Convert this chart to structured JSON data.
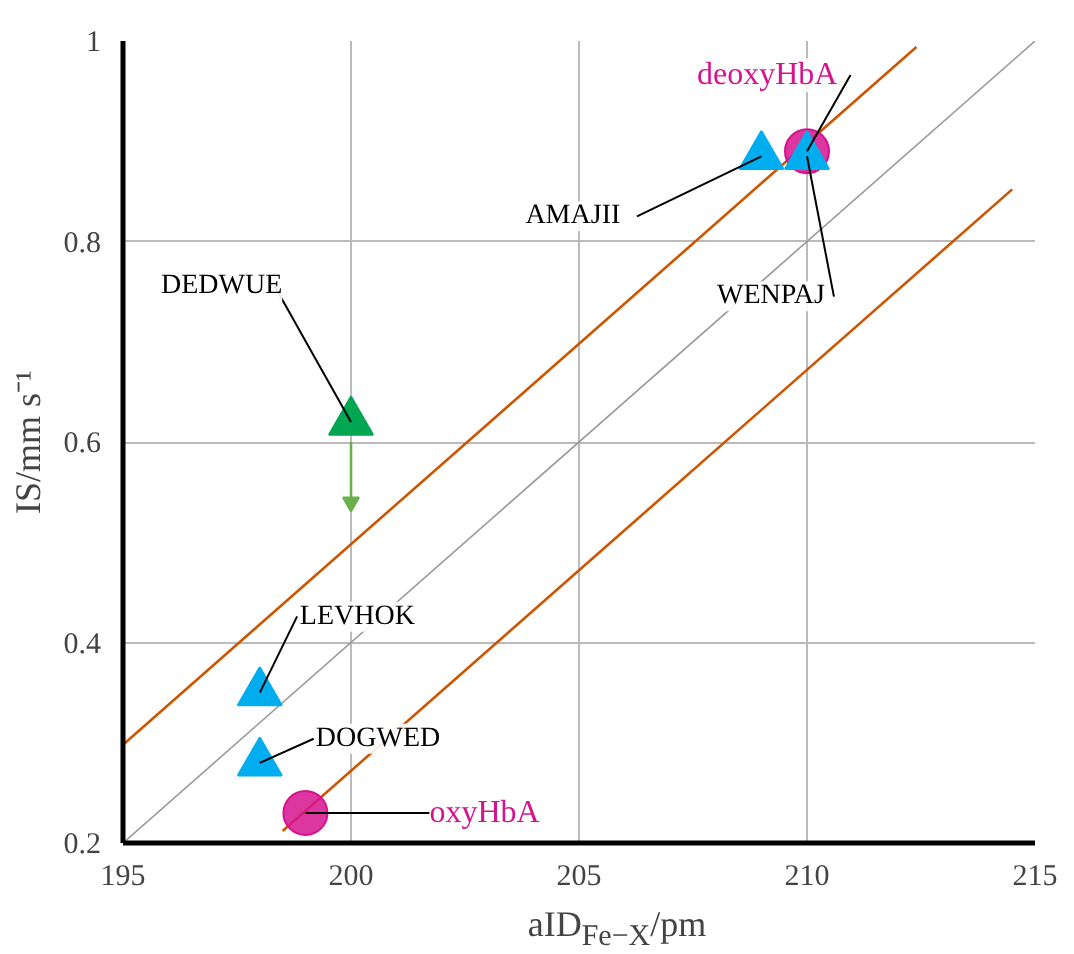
{
  "chart_data": {
    "type": "scatter",
    "xlabel": "aID$_{Fe−X}$/pm",
    "ylabel": "IS/mm s⁻¹",
    "xlim": [
      195,
      215
    ],
    "ylim": [
      0.2,
      1.0
    ],
    "xticks": [
      195,
      200,
      205,
      210,
      215
    ],
    "yticks": [
      {
        "value": 0.2,
        "label": "0.2"
      },
      {
        "value": 0.4,
        "label": "0.4"
      },
      {
        "value": 0.6,
        "label": "0.6"
      },
      {
        "value": 0.8,
        "label": "0.8"
      },
      {
        "value": 1.0,
        "label": "1"
      }
    ],
    "grid": true,
    "series": [
      {
        "type": "line",
        "color": "#999999",
        "x": [
          195,
          215
        ],
        "values": [
          0.2,
          1.0
        ]
      },
      {
        "type": "line",
        "color": "#cc5500",
        "x": [
          195,
          212.4
        ],
        "values": [
          0.298,
          0.994
        ]
      },
      {
        "type": "line",
        "color": "#cc5500",
        "x": [
          198.5,
          214.5
        ],
        "values": [
          0.212,
          0.852
        ]
      },
      {
        "type": "line",
        "color": "#6ab04c",
        "x": [
          200,
          200
        ],
        "values": [
          0.6,
          0.54
        ],
        "marker": "triangle"
      },
      {
        "marker": "triangle",
        "color": "#00a651",
        "x": [
          200
        ],
        "values": [
          0.62
        ]
      },
      {
        "marker": "circle",
        "color": "#d6138f",
        "x": [
          210,
          199
        ],
        "values": [
          0.89,
          0.23
        ]
      },
      {
        "marker": "triangle",
        "color": "#00aeef",
        "x": [
          198,
          198,
          209,
          210
        ],
        "values": [
          0.35,
          0.28,
          0.885,
          0.885
        ]
      }
    ],
    "annotations": [
      {
        "text": "DEDWUE",
        "x": 200,
        "y": 0.62
      },
      {
        "text": "LEVHOK",
        "x": 198,
        "y": 0.35
      },
      {
        "text": "DOGWED",
        "x": 198,
        "y": 0.28
      },
      {
        "text": "AMAJII",
        "x": 209,
        "y": 0.885
      },
      {
        "text": "WENPAJ",
        "x": 210,
        "y": 0.885
      },
      {
        "text": "deoxyHbA",
        "x": 210,
        "y": 0.89
      },
      {
        "text": "oxyHbA",
        "x": 199,
        "y": 0.23
      }
    ]
  }
}
